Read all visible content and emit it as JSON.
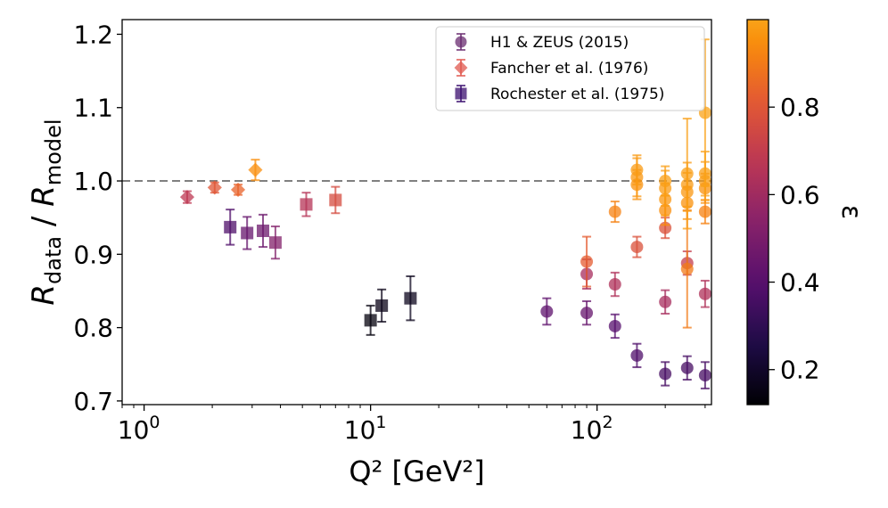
{
  "chart_data": {
    "type": "scatter",
    "xscale": "log",
    "xlim": [
      0.8,
      320
    ],
    "ylim": [
      0.695,
      1.22
    ],
    "xlabel": "Q² [GeV²]",
    "ylabel_main": "R",
    "ylabel_num_sub": "data",
    "ylabel_sep": " / ",
    "ylabel_den_sub": "model",
    "xticks": [
      {
        "value": 1,
        "base": "10",
        "exp": "0"
      },
      {
        "value": 10,
        "base": "10",
        "exp": "1"
      },
      {
        "value": 100,
        "base": "10",
        "exp": "2"
      }
    ],
    "yticks": [
      {
        "value": 0.7,
        "label": "0.7"
      },
      {
        "value": 0.8,
        "label": "0.8"
      },
      {
        "value": 0.9,
        "label": "0.9"
      },
      {
        "value": 1.0,
        "label": "1.0"
      },
      {
        "value": 1.1,
        "label": "1.1"
      },
      {
        "value": 1.2,
        "label": "1.2"
      }
    ],
    "reference_line": {
      "y": 1.0,
      "style": "dashed",
      "color": "#808080"
    },
    "colorbar": {
      "label": "ε",
      "range": [
        0.12,
        1.0
      ],
      "colormap": "inferno",
      "ticks": [
        {
          "value": 0.2,
          "label": "0.2"
        },
        {
          "value": 0.4,
          "label": "0.4"
        },
        {
          "value": 0.6,
          "label": "0.6"
        },
        {
          "value": 0.8,
          "label": "0.8"
        }
      ]
    },
    "legend": {
      "position": "top-right",
      "entries": [
        {
          "label": "H1 & ZEUS (2015)",
          "marker": "circle",
          "color": "#6a2c70"
        },
        {
          "label": "Fancher et al. (1976)",
          "marker": "diamond",
          "color": "#e0584f"
        },
        {
          "label": "Rochester et al. (1975)",
          "marker": "square",
          "color": "#3b0f6f"
        }
      ]
    },
    "series": [
      {
        "name": "H1 & ZEUS (2015)",
        "marker": "circle",
        "points": [
          {
            "x": 60,
            "y": 0.822,
            "err": 0.018,
            "eps": 0.42
          },
          {
            "x": 90,
            "y": 0.82,
            "err": 0.016,
            "eps": 0.44
          },
          {
            "x": 90,
            "y": 0.873,
            "err": 0.02,
            "eps": 0.62
          },
          {
            "x": 90,
            "y": 0.89,
            "err": 0.034,
            "eps": 0.82
          },
          {
            "x": 120,
            "y": 0.802,
            "err": 0.016,
            "eps": 0.4
          },
          {
            "x": 120,
            "y": 0.859,
            "err": 0.016,
            "eps": 0.64
          },
          {
            "x": 120,
            "y": 0.958,
            "err": 0.014,
            "eps": 0.92
          },
          {
            "x": 150,
            "y": 0.762,
            "err": 0.016,
            "eps": 0.38
          },
          {
            "x": 150,
            "y": 0.91,
            "err": 0.014,
            "eps": 0.78
          },
          {
            "x": 150,
            "y": 0.995,
            "err": 0.02,
            "eps": 0.96
          },
          {
            "x": 150,
            "y": 1.005,
            "err": 0.026,
            "eps": 0.97
          },
          {
            "x": 150,
            "y": 1.015,
            "err": 0.02,
            "eps": 0.98
          },
          {
            "x": 200,
            "y": 0.737,
            "err": 0.016,
            "eps": 0.36
          },
          {
            "x": 200,
            "y": 0.835,
            "err": 0.016,
            "eps": 0.62
          },
          {
            "x": 200,
            "y": 0.936,
            "err": 0.014,
            "eps": 0.78
          },
          {
            "x": 200,
            "y": 0.96,
            "err": 0.02,
            "eps": 0.95
          },
          {
            "x": 200,
            "y": 0.975,
            "err": 0.022,
            "eps": 0.97
          },
          {
            "x": 200,
            "y": 0.99,
            "err": 0.024,
            "eps": 0.98
          },
          {
            "x": 200,
            "y": 1.0,
            "err": 0.02,
            "eps": 0.99
          },
          {
            "x": 250,
            "y": 0.745,
            "err": 0.016,
            "eps": 0.36
          },
          {
            "x": 250,
            "y": 0.888,
            "err": 0.016,
            "eps": 0.7
          },
          {
            "x": 250,
            "y": 0.88,
            "err": 0.08,
            "eps": 0.9
          },
          {
            "x": 250,
            "y": 0.97,
            "err": 0.022,
            "eps": 0.96
          },
          {
            "x": 250,
            "y": 0.985,
            "err": 0.026,
            "eps": 0.97
          },
          {
            "x": 250,
            "y": 0.995,
            "err": 0.03,
            "eps": 0.98
          },
          {
            "x": 250,
            "y": 1.01,
            "err": 0.075,
            "eps": 0.99
          },
          {
            "x": 300,
            "y": 0.735,
            "err": 0.018,
            "eps": 0.36
          },
          {
            "x": 300,
            "y": 0.846,
            "err": 0.018,
            "eps": 0.64
          },
          {
            "x": 300,
            "y": 0.958,
            "err": 0.016,
            "eps": 0.92
          },
          {
            "x": 300,
            "y": 0.99,
            "err": 0.02,
            "eps": 0.96
          },
          {
            "x": 300,
            "y": 1.0,
            "err": 0.026,
            "eps": 0.98
          },
          {
            "x": 300,
            "y": 1.01,
            "err": 0.03,
            "eps": 0.99
          },
          {
            "x": 300,
            "y": 1.093,
            "err": 0.1,
            "eps": 1.0
          }
        ]
      },
      {
        "name": "Fancher et al. (1976)",
        "marker": "diamond",
        "points": [
          {
            "x": 1.55,
            "y": 0.978,
            "err": 0.008,
            "eps": 0.68
          },
          {
            "x": 2.05,
            "y": 0.991,
            "err": 0.007,
            "eps": 0.8
          },
          {
            "x": 2.6,
            "y": 0.988,
            "err": 0.007,
            "eps": 0.84
          },
          {
            "x": 3.1,
            "y": 1.015,
            "err": 0.014,
            "eps": 0.95
          }
        ]
      },
      {
        "name": "Rochester et al. (1975)",
        "marker": "square",
        "points": [
          {
            "x": 2.4,
            "y": 0.937,
            "err": 0.024,
            "eps": 0.38
          },
          {
            "x": 2.85,
            "y": 0.929,
            "err": 0.022,
            "eps": 0.44
          },
          {
            "x": 3.35,
            "y": 0.932,
            "err": 0.022,
            "eps": 0.46
          },
          {
            "x": 3.8,
            "y": 0.916,
            "err": 0.022,
            "eps": 0.52
          },
          {
            "x": 5.2,
            "y": 0.968,
            "err": 0.016,
            "eps": 0.66
          },
          {
            "x": 7.0,
            "y": 0.974,
            "err": 0.018,
            "eps": 0.76
          },
          {
            "x": 10.0,
            "y": 0.81,
            "err": 0.02,
            "eps": 0.14
          },
          {
            "x": 11.2,
            "y": 0.83,
            "err": 0.022,
            "eps": 0.16
          },
          {
            "x": 15.0,
            "y": 0.84,
            "err": 0.03,
            "eps": 0.17
          }
        ]
      }
    ]
  }
}
